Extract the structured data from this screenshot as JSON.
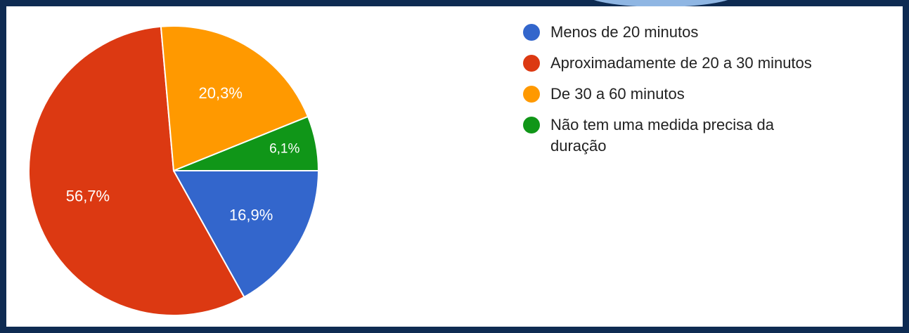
{
  "chart_data": {
    "type": "pie",
    "categories": [
      "Menos de 20 minutos",
      "Aproximadamente de 20 a 30 minutos",
      "De 30 a 60 minutos",
      "Não tem uma medida precisa da duração"
    ],
    "values": [
      16.9,
      56.7,
      20.3,
      6.1
    ],
    "value_labels": [
      "16,9%",
      "56,7%",
      "20,3%",
      "6,1%"
    ],
    "colors": [
      "#3366cc",
      "#dc3912",
      "#ff9900",
      "#109618"
    ]
  }
}
